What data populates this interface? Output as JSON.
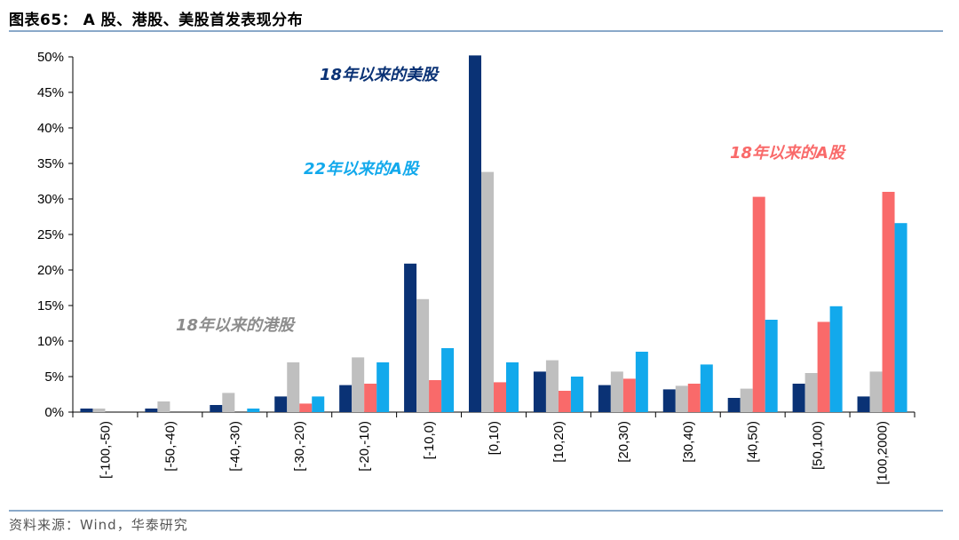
{
  "header": {
    "title": "图表65：  A 股、港股、美股首发表现分布"
  },
  "footer": {
    "source": "资料来源：Wind，华泰研究"
  },
  "chart_data": {
    "type": "bar",
    "title": "",
    "xlabel": "",
    "ylabel": "",
    "ylim": [
      0,
      50
    ],
    "yticks": [
      "0%",
      "5%",
      "10%",
      "15%",
      "20%",
      "25%",
      "30%",
      "35%",
      "40%",
      "45%",
      "50%"
    ],
    "grid": false,
    "categories": [
      "[-100,-50)",
      "[-50,-40)",
      "[-40,-30)",
      "[-30,-20)",
      "[-20,-10)",
      "[-10,0)",
      "[0,10)",
      "[10,20)",
      "[20,30)",
      "[30,40)",
      "[40,50)",
      "[50,100)",
      "[100,2000)"
    ],
    "series": [
      {
        "name": "18年以来的美股",
        "color": "#0a3275",
        "values": [
          0.5,
          0.5,
          1.0,
          2.2,
          3.8,
          20.9,
          50.2,
          5.7,
          3.8,
          3.2,
          2.0,
          4.0,
          2.2
        ]
      },
      {
        "name": "18年以来的港股",
        "color": "#bfbfbf",
        "values": [
          0.5,
          1.5,
          2.7,
          7.0,
          7.7,
          15.9,
          33.8,
          7.3,
          5.7,
          3.7,
          3.3,
          5.5,
          5.7
        ]
      },
      {
        "name": "18年以来的A股",
        "color": "#f96a6a",
        "values": [
          0.0,
          0.0,
          0.0,
          1.2,
          4.0,
          4.5,
          4.2,
          3.0,
          4.7,
          4.0,
          30.3,
          12.7,
          31.0
        ]
      },
      {
        "name": "22年以来的A股",
        "color": "#12a9ec",
        "values": [
          0.0,
          0.0,
          0.5,
          2.2,
          7.0,
          9.0,
          7.0,
          5.0,
          8.5,
          6.7,
          13.0,
          14.9,
          26.6
        ]
      }
    ],
    "annotations": [
      "18年以来的美股",
      "22年以来的A股",
      "18年以来的A股",
      "18年以来的港股"
    ]
  }
}
